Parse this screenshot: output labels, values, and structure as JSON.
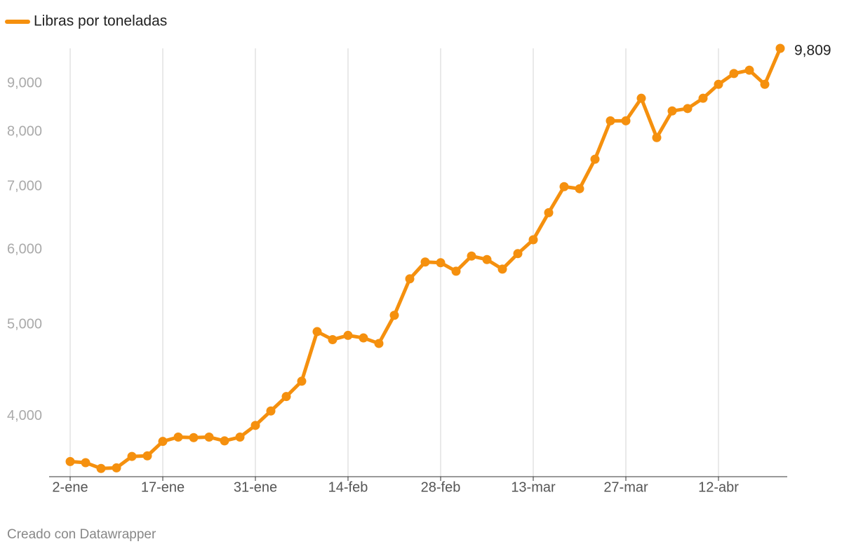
{
  "chart_data": {
    "type": "line",
    "legend": "Libras por toneladas",
    "footer": "Creado con Datawrapper",
    "log_scale": true,
    "grid": "x",
    "categories": [
      "2-ene",
      null,
      null,
      null,
      null,
      null,
      "17-ene",
      null,
      null,
      null,
      null,
      null,
      "31-ene",
      null,
      null,
      null,
      null,
      null,
      "14-feb",
      null,
      null,
      null,
      null,
      null,
      "28-feb",
      null,
      null,
      null,
      null,
      null,
      "13-mar",
      null,
      null,
      null,
      null,
      null,
      "27-mar",
      null,
      null,
      null,
      null,
      null,
      "12-abr",
      null,
      null,
      null,
      null
    ],
    "series": [
      {
        "name": "Libras por toneladas",
        "color": "#f5900e",
        "values": [
          3580,
          3570,
          3520,
          3525,
          3625,
          3630,
          3760,
          3800,
          3795,
          3800,
          3765,
          3800,
          3910,
          4050,
          4195,
          4355,
          4915,
          4820,
          4870,
          4840,
          4775,
          5115,
          5590,
          5825,
          5815,
          5695,
          5910,
          5860,
          5725,
          5945,
          6150,
          6570,
          7000,
          6965,
          7485,
          8220,
          8220,
          8685,
          7890,
          8420,
          8470,
          8685,
          8985,
          9225,
          9300,
          8985,
          9809
        ],
        "value_labels": [
          null,
          null,
          null,
          null,
          null,
          null,
          null,
          null,
          null,
          null,
          null,
          null,
          null,
          null,
          null,
          null,
          null,
          null,
          null,
          null,
          null,
          null,
          null,
          null,
          null,
          null,
          null,
          null,
          null,
          null,
          null,
          null,
          null,
          null,
          null,
          null,
          null,
          null,
          null,
          null,
          null,
          null,
          null,
          null,
          null,
          null,
          "9,809"
        ]
      }
    ],
    "ylim": [
      3450,
      9809
    ],
    "yticks": [
      {
        "value": 4000,
        "label": "4,000"
      },
      {
        "value": 5000,
        "label": "5,000"
      },
      {
        "value": 6000,
        "label": "6,000"
      },
      {
        "value": 7000,
        "label": "7,000"
      },
      {
        "value": 8000,
        "label": "8,000"
      },
      {
        "value": 9000,
        "label": "9,000"
      }
    ]
  }
}
